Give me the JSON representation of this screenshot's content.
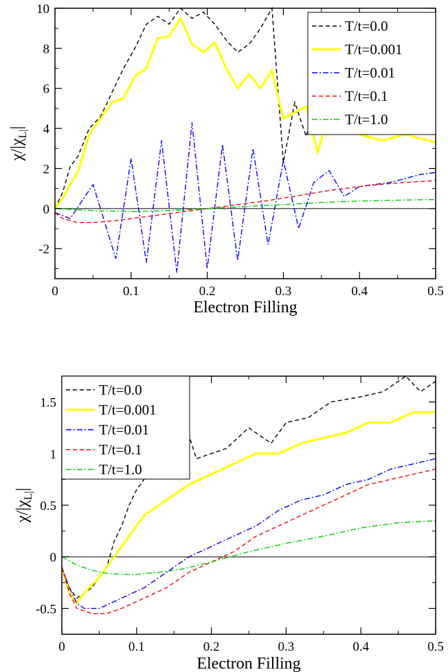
{
  "chart_data": [
    {
      "type": "line",
      "xlabel": "Electron Filling",
      "ylabel": "χ/|χ_L|",
      "xlim": [
        0,
        0.5
      ],
      "ylim": [
        -3.5,
        10
      ],
      "xticks": [
        "0",
        "0.1",
        "0.2",
        "0.3",
        "0.4",
        "0.5"
      ],
      "yticks": [
        "-2",
        "0",
        "2",
        "4",
        "6",
        "8",
        "10"
      ],
      "legend_position": "top-right",
      "series": [
        {
          "name": "T/t=0.0",
          "color": "#000000",
          "dash": "dashed",
          "x": [
            0,
            0.01,
            0.02,
            0.03,
            0.045,
            0.06,
            0.075,
            0.09,
            0.105,
            0.12,
            0.135,
            0.15,
            0.165,
            0.18,
            0.195,
            0.21,
            0.225,
            0.24,
            0.255,
            0.27,
            0.285,
            0.3,
            0.315,
            0.33,
            0.35,
            0.37,
            0.4,
            0.43,
            0.46,
            0.5
          ],
          "y": [
            0,
            0.8,
            2.1,
            2.6,
            4.0,
            4.6,
            5.8,
            7.0,
            8.0,
            9.2,
            9.6,
            9.2,
            10.0,
            9.5,
            9.8,
            9.2,
            8.4,
            7.8,
            8.2,
            9.0,
            10.0,
            2.3,
            5.3,
            3.6,
            6.3,
            5.1,
            5.4,
            5.0,
            5.0,
            4.3
          ]
        },
        {
          "name": "T/t=0.001",
          "color": "#ffff00",
          "dash": "solid",
          "x": [
            0,
            0.01,
            0.02,
            0.03,
            0.045,
            0.06,
            0.075,
            0.09,
            0.105,
            0.12,
            0.135,
            0.15,
            0.165,
            0.18,
            0.195,
            0.21,
            0.225,
            0.24,
            0.255,
            0.27,
            0.285,
            0.3,
            0.315,
            0.33,
            0.345,
            0.36,
            0.38,
            0.4,
            0.43,
            0.46,
            0.5
          ],
          "y": [
            0,
            0.5,
            1.2,
            1.8,
            3.7,
            4.5,
            5.3,
            5.5,
            6.6,
            7.0,
            8.5,
            8.6,
            9.5,
            8.2,
            7.8,
            8.3,
            7.0,
            6.0,
            6.7,
            6.0,
            6.9,
            4.5,
            4.8,
            5.1,
            2.8,
            4.7,
            4.0,
            3.7,
            3.4,
            3.7,
            3.3
          ]
        },
        {
          "name": "T/t=0.01",
          "color": "#0000ff",
          "dash": "dashdot",
          "x": [
            0,
            0.02,
            0.05,
            0.08,
            0.1,
            0.12,
            0.14,
            0.16,
            0.18,
            0.2,
            0.22,
            0.24,
            0.26,
            0.28,
            0.3,
            0.32,
            0.34,
            0.36,
            0.38,
            0.4,
            0.44,
            0.48,
            0.5
          ],
          "y": [
            -0.2,
            -0.5,
            1.2,
            -2.5,
            2.5,
            -2.7,
            3.4,
            -3.2,
            4.3,
            -3.0,
            3.2,
            -2.6,
            3.0,
            -1.8,
            2.4,
            -1.0,
            1.3,
            1.9,
            0.6,
            1.1,
            1.3,
            1.7,
            1.8
          ]
        },
        {
          "name": "T/t=0.1",
          "color": "#ff0000",
          "dash": "dashed",
          "x": [
            0,
            0.01,
            0.03,
            0.05,
            0.08,
            0.12,
            0.16,
            0.2,
            0.24,
            0.28,
            0.32,
            0.36,
            0.4,
            0.44,
            0.48,
            0.5
          ],
          "y": [
            -0.2,
            -0.5,
            -0.7,
            -0.7,
            -0.6,
            -0.4,
            -0.2,
            0.0,
            0.2,
            0.4,
            0.65,
            0.9,
            1.1,
            1.25,
            1.35,
            1.4
          ]
        },
        {
          "name": "T/t=1.0",
          "color": "#00cc00",
          "dash": "dashdot",
          "x": [
            0,
            0.05,
            0.1,
            0.15,
            0.2,
            0.25,
            0.3,
            0.35,
            0.4,
            0.45,
            0.5
          ],
          "y": [
            0,
            -0.1,
            -0.15,
            -0.1,
            0.0,
            0.1,
            0.2,
            0.3,
            0.38,
            0.42,
            0.45
          ]
        }
      ]
    },
    {
      "type": "line",
      "xlabel": "Electron Filling",
      "ylabel": "χ/|χ_L|",
      "xlim": [
        0,
        0.5
      ],
      "ylim": [
        -0.75,
        1.75
      ],
      "xticks": [
        "0",
        "0.1",
        "0.2",
        "0.3",
        "0.4",
        "0.5"
      ],
      "yticks": [
        "-0.5",
        "0",
        "0.5",
        "1",
        "1.5"
      ],
      "legend_position": "top-left",
      "series": [
        {
          "name": "T/t=0.0",
          "color": "#000000",
          "dash": "dashed",
          "x": [
            0,
            0.01,
            0.02,
            0.04,
            0.06,
            0.07,
            0.08,
            0.09,
            0.1,
            0.12,
            0.14,
            0.16,
            0.18,
            0.2,
            0.22,
            0.25,
            0.28,
            0.3,
            0.33,
            0.36,
            0.4,
            0.43,
            0.46,
            0.48,
            0.5
          ],
          "y": [
            -0.1,
            -0.3,
            -0.4,
            -0.3,
            -0.1,
            0.15,
            0.3,
            0.5,
            0.65,
            0.85,
            0.8,
            1.4,
            0.95,
            1.0,
            1.05,
            1.25,
            1.1,
            1.3,
            1.35,
            1.5,
            1.55,
            1.6,
            1.75,
            1.6,
            1.7
          ]
        },
        {
          "name": "T/t=0.001",
          "color": "#ffff00",
          "dash": "solid",
          "x": [
            0,
            0.01,
            0.02,
            0.03,
            0.05,
            0.07,
            0.09,
            0.11,
            0.13,
            0.15,
            0.17,
            0.2,
            0.23,
            0.26,
            0.29,
            0.32,
            0.35,
            0.38,
            0.41,
            0.44,
            0.47,
            0.5
          ],
          "y": [
            -0.1,
            -0.35,
            -0.45,
            -0.35,
            -0.2,
            0.0,
            0.2,
            0.4,
            0.5,
            0.6,
            0.7,
            0.8,
            0.9,
            1.0,
            1.0,
            1.1,
            1.15,
            1.2,
            1.3,
            1.3,
            1.4,
            1.4
          ]
        },
        {
          "name": "T/t=0.01",
          "color": "#0000ff",
          "dash": "dashdot",
          "x": [
            0,
            0.01,
            0.02,
            0.03,
            0.05,
            0.08,
            0.11,
            0.14,
            0.17,
            0.2,
            0.23,
            0.26,
            0.29,
            0.32,
            0.35,
            0.38,
            0.41,
            0.44,
            0.47,
            0.5
          ],
          "y": [
            -0.1,
            -0.3,
            -0.45,
            -0.5,
            -0.5,
            -0.4,
            -0.3,
            -0.15,
            0.0,
            0.1,
            0.2,
            0.3,
            0.45,
            0.55,
            0.6,
            0.7,
            0.75,
            0.85,
            0.9,
            0.95
          ]
        },
        {
          "name": "T/t=0.1",
          "color": "#ff0000",
          "dash": "dashed",
          "x": [
            0,
            0.01,
            0.02,
            0.04,
            0.06,
            0.08,
            0.11,
            0.14,
            0.17,
            0.2,
            0.23,
            0.26,
            0.29,
            0.32,
            0.35,
            0.38,
            0.41,
            0.44,
            0.47,
            0.5
          ],
          "y": [
            -0.1,
            -0.35,
            -0.5,
            -0.55,
            -0.55,
            -0.5,
            -0.4,
            -0.3,
            -0.15,
            -0.05,
            0.05,
            0.2,
            0.3,
            0.4,
            0.5,
            0.6,
            0.7,
            0.75,
            0.8,
            0.85
          ]
        },
        {
          "name": "T/t=1.0",
          "color": "#00cc00",
          "dash": "dashdot",
          "x": [
            0,
            0.02,
            0.04,
            0.06,
            0.08,
            0.1,
            0.13,
            0.16,
            0.2,
            0.25,
            0.3,
            0.35,
            0.4,
            0.45,
            0.5
          ],
          "y": [
            0,
            -0.08,
            -0.13,
            -0.16,
            -0.17,
            -0.17,
            -0.15,
            -0.12,
            -0.05,
            0.05,
            0.13,
            0.2,
            0.28,
            0.33,
            0.35
          ]
        }
      ]
    }
  ]
}
